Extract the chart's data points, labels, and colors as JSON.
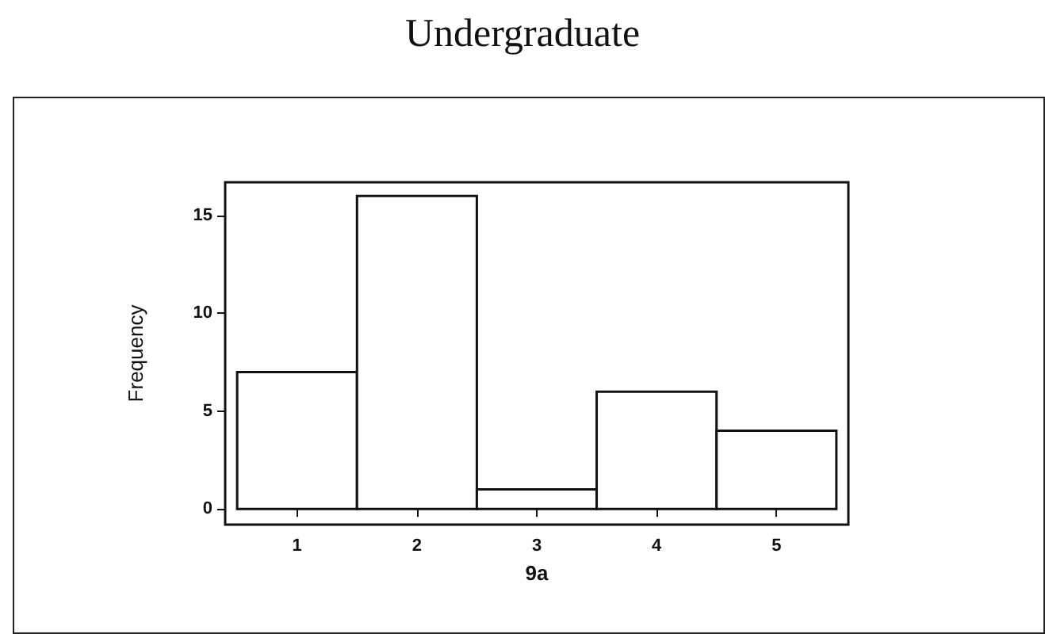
{
  "chart_data": {
    "type": "histogram",
    "title": "Undergraduate",
    "xlabel": "9a",
    "ylabel": "Frequency",
    "bins": [
      0.5,
      1.5,
      2.5,
      3.5,
      4.5,
      5.5
    ],
    "values": [
      7,
      16,
      1,
      6,
      4
    ],
    "color": "#ffffff",
    "xlim": [
      0.4,
      5.6
    ],
    "xticks": [
      1,
      2,
      3,
      4,
      5
    ],
    "ylim": [
      -0.8,
      16.7
    ],
    "yticks": [
      0,
      5,
      10,
      15
    ],
    "grid": false
  }
}
